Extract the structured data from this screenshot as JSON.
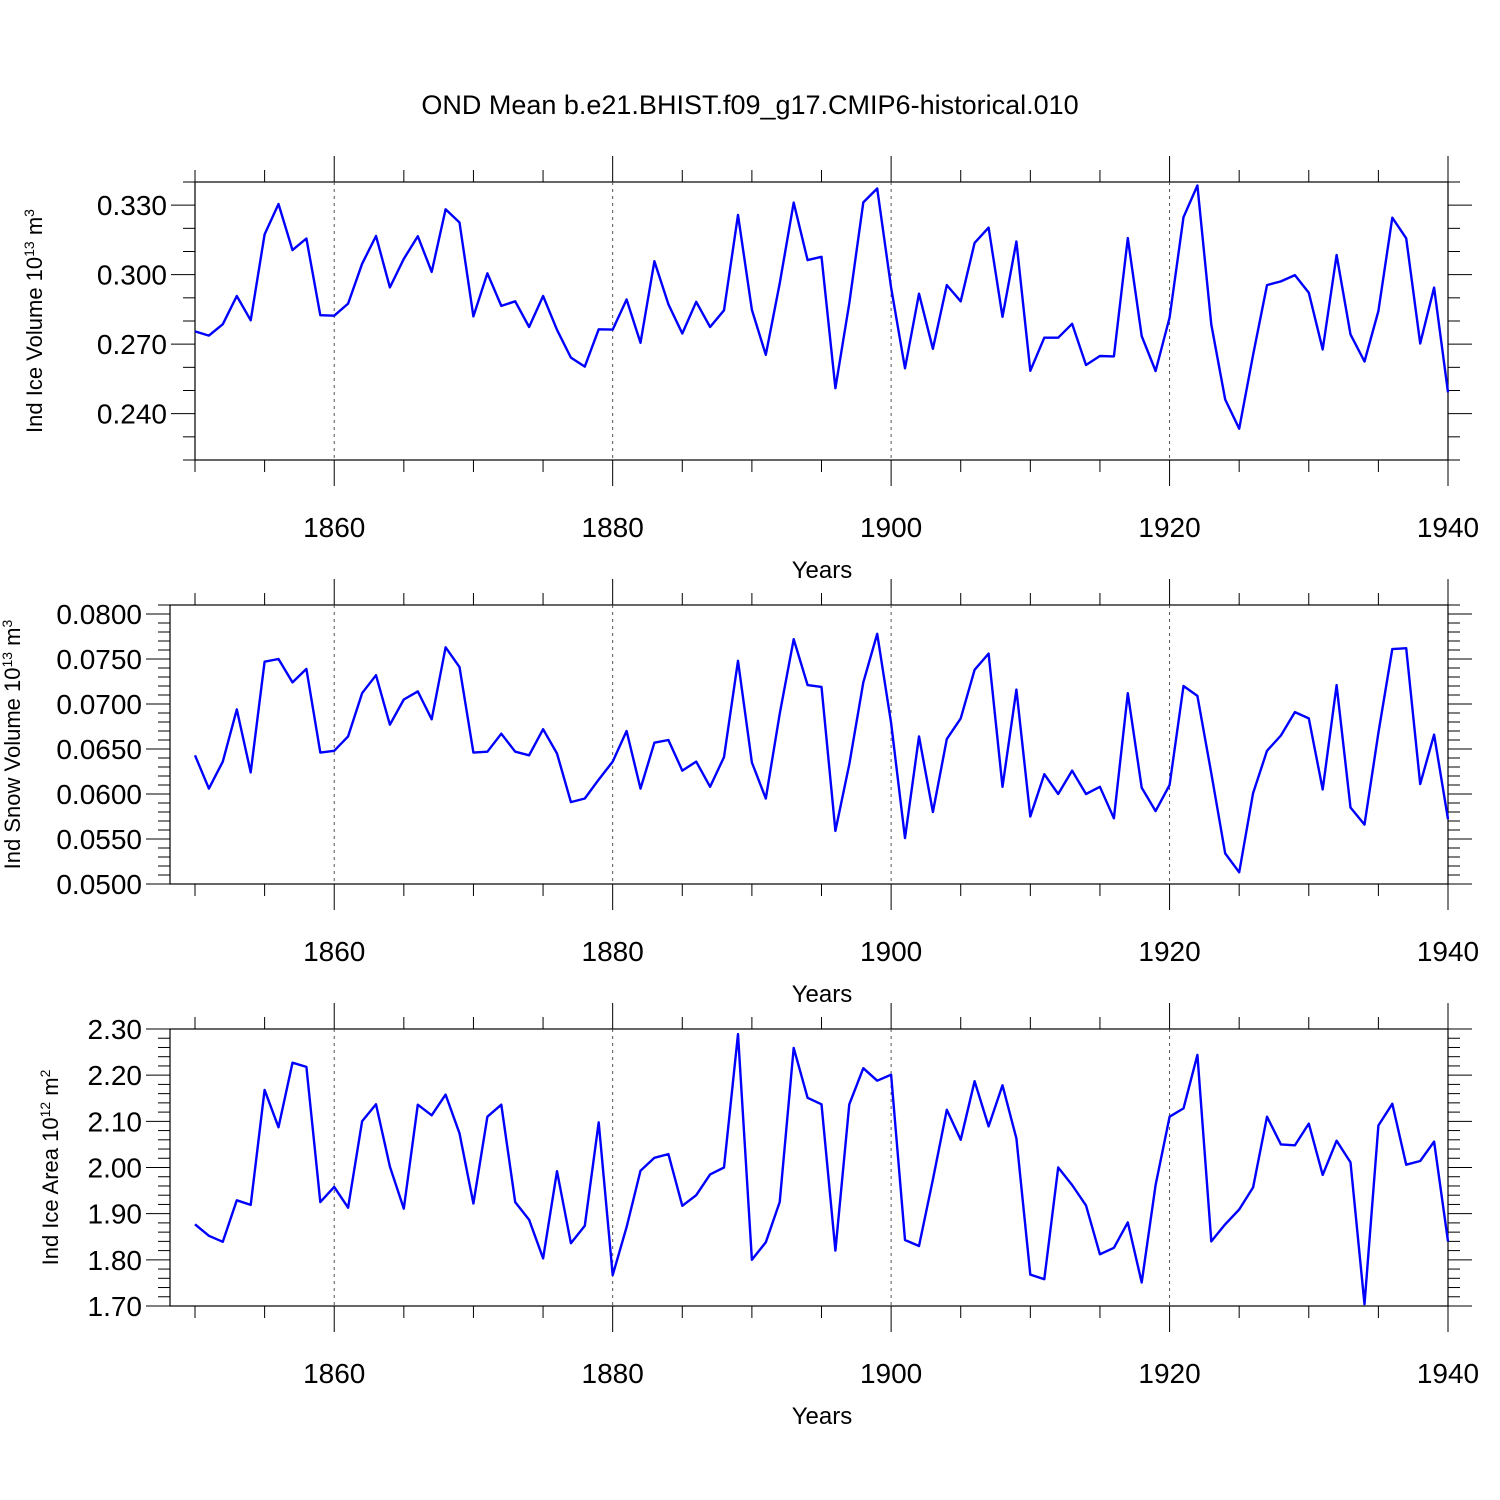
{
  "title": "OND Mean b.e21.BHIST.f09_g17.CMIP6-historical.010",
  "colors": {
    "line": "#0000ff",
    "axis": "#000000",
    "grid": "#555555"
  },
  "chart_data": [
    {
      "type": "line",
      "ylabel": "Ind Ice Volume 10",
      "ylabel_exp": "13",
      "ylabel_unit": " m",
      "ylabel_unit_exp": "3",
      "xlabel": "Years",
      "xlim": [
        1850,
        1940
      ],
      "ylim": [
        0.22,
        0.34
      ],
      "xticks": [
        1860,
        1880,
        1900,
        1920,
        1940
      ],
      "xtick_labels": [
        "1860",
        "1880",
        "1900",
        "1920",
        "1940"
      ],
      "yticks": [
        0.24,
        0.27,
        0.3,
        0.33
      ],
      "ytick_labels": [
        "0.240",
        "0.270",
        "0.300",
        "0.330"
      ],
      "ymin_step": 0.01,
      "x": [
        1850,
        1851,
        1852,
        1853,
        1854,
        1855,
        1856,
        1857,
        1858,
        1859,
        1860,
        1861,
        1862,
        1863,
        1864,
        1865,
        1866,
        1867,
        1868,
        1869,
        1870,
        1871,
        1872,
        1873,
        1874,
        1875,
        1876,
        1877,
        1878,
        1879,
        1880,
        1881,
        1882,
        1883,
        1884,
        1885,
        1886,
        1887,
        1888,
        1889,
        1890,
        1891,
        1892,
        1893,
        1894,
        1895,
        1896,
        1897,
        1898,
        1899,
        1900,
        1901,
        1902,
        1903,
        1904,
        1905,
        1906,
        1907,
        1908,
        1909,
        1910,
        1911,
        1912,
        1913,
        1914,
        1915,
        1916,
        1917,
        1918,
        1919,
        1920,
        1921,
        1922,
        1923,
        1924,
        1925,
        1926,
        1927,
        1928,
        1929,
        1930,
        1931,
        1932,
        1933,
        1934,
        1935,
        1936,
        1937,
        1938,
        1939,
        1940
      ],
      "values": [
        0.2755,
        0.2737,
        0.2786,
        0.2908,
        0.2803,
        0.3174,
        0.3305,
        0.3106,
        0.3156,
        0.2825,
        0.2823,
        0.2875,
        0.3047,
        0.3167,
        0.2945,
        0.3068,
        0.3166,
        0.3012,
        0.3282,
        0.3225,
        0.282,
        0.3006,
        0.2865,
        0.2885,
        0.2774,
        0.2908,
        0.2762,
        0.2642,
        0.2603,
        0.2764,
        0.2763,
        0.2893,
        0.2706,
        0.3058,
        0.2872,
        0.2746,
        0.2883,
        0.2774,
        0.2846,
        0.3258,
        0.2848,
        0.2654,
        0.2962,
        0.3311,
        0.3063,
        0.3077,
        0.251,
        0.2877,
        0.3312,
        0.3372,
        0.2944,
        0.2596,
        0.2918,
        0.268,
        0.2955,
        0.2885,
        0.3137,
        0.3203,
        0.2818,
        0.3143,
        0.2585,
        0.2728,
        0.2728,
        0.2788,
        0.261,
        0.2649,
        0.2647,
        0.3158,
        0.2735,
        0.2584,
        0.2815,
        0.3248,
        0.3385,
        0.2785,
        0.2461,
        0.2335,
        0.2654,
        0.2955,
        0.2971,
        0.2998,
        0.2922,
        0.2677,
        0.3085,
        0.2742,
        0.2625,
        0.2843,
        0.3246,
        0.3157,
        0.2703,
        0.2944,
        0.2492
      ]
    },
    {
      "type": "line",
      "ylabel": "Ind Snow Volume 10",
      "ylabel_exp": "13",
      "ylabel_unit": " m",
      "ylabel_unit_exp": "3",
      "xlabel": "Years",
      "xlim": [
        1850,
        1940
      ],
      "ylim": [
        0.05,
        0.081
      ],
      "xticks": [
        1860,
        1880,
        1900,
        1920,
        1940
      ],
      "xtick_labels": [
        "1860",
        "1880",
        "1900",
        "1920",
        "1940"
      ],
      "yticks": [
        0.05,
        0.055,
        0.06,
        0.065,
        0.07,
        0.075,
        0.08
      ],
      "ytick_labels": [
        "0.0500",
        "0.0550",
        "0.0600",
        "0.0650",
        "0.0700",
        "0.0750",
        "0.0800"
      ],
      "ymin_step": 0.001,
      "x": [
        1850,
        1851,
        1852,
        1853,
        1854,
        1855,
        1856,
        1857,
        1858,
        1859,
        1860,
        1861,
        1862,
        1863,
        1864,
        1865,
        1866,
        1867,
        1868,
        1869,
        1870,
        1871,
        1872,
        1873,
        1874,
        1875,
        1876,
        1877,
        1878,
        1879,
        1880,
        1881,
        1882,
        1883,
        1884,
        1885,
        1886,
        1887,
        1888,
        1889,
        1890,
        1891,
        1892,
        1893,
        1894,
        1895,
        1896,
        1897,
        1898,
        1899,
        1900,
        1901,
        1902,
        1903,
        1904,
        1905,
        1906,
        1907,
        1908,
        1909,
        1910,
        1911,
        1912,
        1913,
        1914,
        1915,
        1916,
        1917,
        1918,
        1919,
        1920,
        1921,
        1922,
        1923,
        1924,
        1925,
        1926,
        1927,
        1928,
        1929,
        1930,
        1931,
        1932,
        1933,
        1934,
        1935,
        1936,
        1937,
        1938,
        1939,
        1940
      ],
      "values": [
        0.0643,
        0.0606,
        0.0636,
        0.0694,
        0.0624,
        0.0747,
        0.075,
        0.0724,
        0.0739,
        0.0646,
        0.0648,
        0.0664,
        0.0712,
        0.0732,
        0.0677,
        0.0705,
        0.0714,
        0.0683,
        0.0763,
        0.0741,
        0.0646,
        0.0647,
        0.0667,
        0.0647,
        0.0643,
        0.0672,
        0.0645,
        0.0591,
        0.0595,
        0.0616,
        0.0636,
        0.067,
        0.0606,
        0.0657,
        0.066,
        0.0626,
        0.0636,
        0.0608,
        0.0641,
        0.0748,
        0.0635,
        0.0595,
        0.0689,
        0.0772,
        0.0721,
        0.0719,
        0.0559,
        0.0633,
        0.0724,
        0.0778,
        0.0679,
        0.0551,
        0.0664,
        0.058,
        0.0661,
        0.0684,
        0.0738,
        0.0756,
        0.0608,
        0.0716,
        0.0575,
        0.0622,
        0.06,
        0.0626,
        0.06,
        0.0608,
        0.0573,
        0.0712,
        0.0607,
        0.0581,
        0.061,
        0.072,
        0.0709,
        0.0623,
        0.0534,
        0.0513,
        0.0601,
        0.0648,
        0.0665,
        0.0691,
        0.0684,
        0.0605,
        0.0721,
        0.0585,
        0.0566,
        0.0668,
        0.0761,
        0.0762,
        0.0611,
        0.0666,
        0.0572
      ]
    },
    {
      "type": "line",
      "ylabel": "Ind Ice Area 10",
      "ylabel_exp": "12",
      "ylabel_unit": " m",
      "ylabel_unit_exp": "2",
      "xlabel": "Years",
      "xlim": [
        1850,
        1940
      ],
      "ylim": [
        1.7,
        2.3
      ],
      "xticks": [
        1860,
        1880,
        1900,
        1920,
        1940
      ],
      "xtick_labels": [
        "1860",
        "1880",
        "1900",
        "1920",
        "1940"
      ],
      "yticks": [
        1.7,
        1.8,
        1.9,
        2.0,
        2.1,
        2.2,
        2.3
      ],
      "ytick_labels": [
        "1.70",
        "1.80",
        "1.90",
        "2.00",
        "2.10",
        "2.20",
        "2.30"
      ],
      "ymin_step": 0.02,
      "x": [
        1850,
        1851,
        1852,
        1853,
        1854,
        1855,
        1856,
        1857,
        1858,
        1859,
        1860,
        1861,
        1862,
        1863,
        1864,
        1865,
        1866,
        1867,
        1868,
        1869,
        1870,
        1871,
        1872,
        1873,
        1874,
        1875,
        1876,
        1877,
        1878,
        1879,
        1880,
        1881,
        1882,
        1883,
        1884,
        1885,
        1886,
        1887,
        1888,
        1889,
        1890,
        1891,
        1892,
        1893,
        1894,
        1895,
        1896,
        1897,
        1898,
        1899,
        1900,
        1901,
        1902,
        1903,
        1904,
        1905,
        1906,
        1907,
        1908,
        1909,
        1910,
        1911,
        1912,
        1913,
        1914,
        1915,
        1916,
        1917,
        1918,
        1919,
        1920,
        1921,
        1922,
        1923,
        1924,
        1925,
        1926,
        1927,
        1928,
        1929,
        1930,
        1931,
        1932,
        1933,
        1934,
        1935,
        1936,
        1937,
        1938,
        1939,
        1940
      ],
      "values": [
        1.877,
        1.852,
        1.839,
        1.929,
        1.919,
        2.168,
        2.087,
        2.227,
        2.218,
        1.925,
        1.958,
        1.913,
        2.1,
        2.137,
        2.002,
        1.911,
        2.136,
        2.113,
        2.158,
        2.074,
        1.922,
        2.11,
        2.136,
        1.925,
        1.887,
        1.803,
        1.992,
        1.836,
        1.874,
        2.098,
        1.767,
        1.871,
        1.993,
        2.021,
        2.029,
        1.917,
        1.94,
        1.985,
        2.0,
        2.289,
        1.8,
        1.838,
        1.925,
        2.259,
        2.151,
        2.137,
        1.82,
        2.137,
        2.215,
        2.188,
        2.201,
        1.843,
        1.83,
        1.974,
        2.125,
        2.06,
        2.187,
        2.089,
        2.178,
        2.063,
        1.768,
        1.758,
        2.0,
        1.962,
        1.918,
        1.812,
        1.826,
        1.881,
        1.751,
        1.962,
        2.11,
        2.128,
        2.244,
        1.84,
        1.877,
        1.909,
        1.957,
        2.11,
        2.05,
        2.048,
        2.095,
        1.984,
        2.058,
        2.011,
        1.704,
        2.091,
        2.138,
        2.006,
        2.014,
        2.056,
        1.84
      ]
    }
  ]
}
